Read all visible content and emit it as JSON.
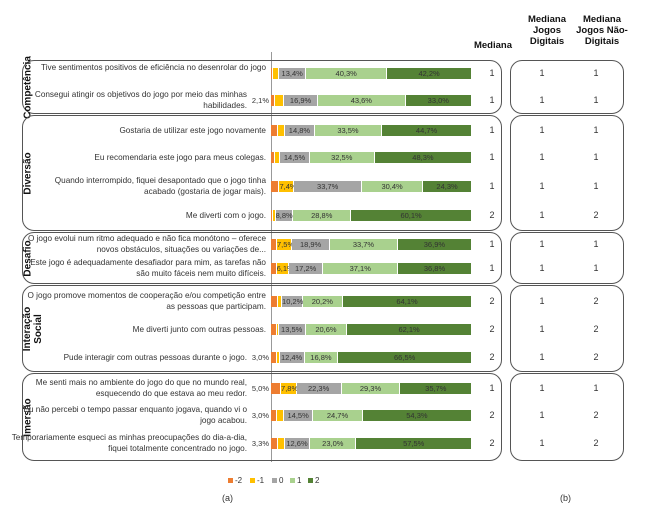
{
  "headers": {
    "mediana": "Mediana",
    "mediana_digitais": "Mediana Jogos Digitais",
    "mediana_nao_digitais": "Mediana Jogos Não-Digitais"
  },
  "captions": {
    "a": "(a)",
    "b": "(b)"
  },
  "colors": {
    "-2": "#ed7d31",
    "-1": "#ffc000",
    "0": "#a5a5a5",
    "1": "#a9d18e",
    "2": "#548235"
  },
  "chart_data": {
    "type": "bar",
    "orientation": "horizontal-stacked",
    "legend": {
      "position": "bottom",
      "entries": [
        "-2",
        "-1",
        "0",
        "1",
        "2"
      ]
    },
    "xlim": [
      0,
      100
    ],
    "groups": [
      {
        "name": "Competência",
        "rows": [
          {
            "q": "Tive sentimentos positivos de eficiência no desenrolar do jogo",
            "values": [
              1.0,
              3.1,
              13.4,
              40.3,
              42.2
            ],
            "labels": [
              "",
              "",
              "13,4%",
              "40,3%",
              "42,2%"
            ],
            "median": 1,
            "med_dig": 1,
            "med_nd": 1
          },
          {
            "q": "Consegui atingir os objetivos do jogo por meio das minhas habilidades.",
            "values": [
              2.1,
              4.4,
              16.9,
              43.6,
              33.0
            ],
            "labels": [
              "2,1%",
              "",
              "16,9%",
              "43,6%",
              "33,0%"
            ],
            "median": 1,
            "med_dig": 1,
            "med_nd": 1
          }
        ]
      },
      {
        "name": "Diversão",
        "rows": [
          {
            "q": "Gostaria de utilizar este jogo novamente",
            "values": [
              3.5,
              3.5,
              14.8,
              33.5,
              44.7
            ],
            "labels": [
              "",
              "",
              "14,8%",
              "33,5%",
              "44,7%"
            ],
            "median": 1,
            "med_dig": 1,
            "med_nd": 1
          },
          {
            "q": "Eu recomendaria este jogo para meus colegas.",
            "values": [
              2.0,
              2.7,
              14.5,
              32.5,
              48.3
            ],
            "labels": [
              "",
              "",
              "14,5%",
              "32,5%",
              "48,3%"
            ],
            "median": 1,
            "med_dig": 1,
            "med_nd": 1
          },
          {
            "q": "Quando interrompido, fiquei desapontado que o jogo tinha acabado (gostaria de jogar mais).",
            "values": [
              4.2,
              7.4,
              33.7,
              30.4,
              24.3
            ],
            "labels": [
              "",
              "7,4%",
              "33,7%",
              "30,4%",
              "24,3%"
            ],
            "median": 1,
            "med_dig": 1,
            "med_nd": 1
          },
          {
            "q": "Me diverti com o jogo.",
            "values": [
              0.8,
              1.5,
              8.8,
              28.8,
              60.1
            ],
            "labels": [
              "",
              "",
              "8,8%",
              "28,8%",
              "60,1%"
            ],
            "median": 2,
            "med_dig": 1,
            "med_nd": 2
          }
        ]
      },
      {
        "name": "Desafio",
        "rows": [
          {
            "q": "O jogo evolui num ritmo adequado e não fica monótono – oferece novos obstáculos, situações ou variações de...",
            "values": [
              3.0,
              7.5,
              18.9,
              33.7,
              36.9
            ],
            "labels": [
              "",
              "7,5%",
              "18,9%",
              "33,7%",
              "36,9%"
            ],
            "median": 1,
            "med_dig": 1,
            "med_nd": 1
          },
          {
            "q": "Este jogo é adequadamente desafiador para mim, as tarefas não são muito fáceis nem muito difíceis.",
            "values": [
              2.8,
              6.1,
              17.2,
              37.1,
              36.8
            ],
            "labels": [
              "",
              "6,1%",
              "17,2%",
              "37,1%",
              "36,8%"
            ],
            "median": 1,
            "med_dig": 1,
            "med_nd": 1
          }
        ]
      },
      {
        "name": "Interação Social",
        "rows": [
          {
            "q": "O jogo promove momentos de cooperação e/ou competição entre as pessoas que participam.",
            "values": [
              3.5,
              2.0,
              10.2,
              20.2,
              64.1
            ],
            "labels": [
              "",
              "",
              "10,2%",
              "20,2%",
              "64,1%"
            ],
            "median": 2,
            "med_dig": 1,
            "med_nd": 2
          },
          {
            "q": "Me diverti junto com outras pessoas.",
            "values": [
              2.8,
              1.0,
              13.5,
              20.6,
              62.1
            ],
            "labels": [
              "",
              "",
              "13,5%",
              "20,6%",
              "62,1%"
            ],
            "median": 2,
            "med_dig": 1,
            "med_nd": 2
          },
          {
            "q": "Pude interagir com outras pessoas durante o jogo.",
            "values": [
              3.0,
              1.3,
              12.4,
              16.8,
              66.5
            ],
            "labels": [
              "3,0%",
              "",
              "12,4%",
              "16,8%",
              "66,5%"
            ],
            "median": 2,
            "med_dig": 1,
            "med_nd": 2
          }
        ]
      },
      {
        "name": "Imersão",
        "rows": [
          {
            "q": "Me senti mais no ambiente do jogo do que no mundo real, esquecendo do que estava ao meu redor.",
            "values": [
              5.0,
              7.8,
              22.3,
              29.3,
              35.7
            ],
            "labels": [
              "5,0%",
              "7,8%",
              "22,3%",
              "29,3%",
              "35,7%"
            ],
            "median": 1,
            "med_dig": 1,
            "med_nd": 1
          },
          {
            "q": "Eu não percebi o tempo passar enquanto jogava, quando vi o jogo acabou.",
            "values": [
              3.0,
              3.5,
              14.5,
              24.7,
              54.3
            ],
            "labels": [
              "3,0%",
              "",
              "14,5%",
              "24,7%",
              "54,3%"
            ],
            "median": 2,
            "med_dig": 1,
            "med_nd": 2
          },
          {
            "q": "Temporariamente esqueci as minhas preocupações do dia-a-dia, fiquei totalmente concentrado no jogo.",
            "values": [
              3.3,
              3.6,
              12.6,
              23.0,
              57.5
            ],
            "labels": [
              "3,3%",
              "",
              "12,6%",
              "23,0%",
              "57,5%"
            ],
            "median": 2,
            "med_dig": 1,
            "med_nd": 2
          }
        ]
      }
    ]
  }
}
